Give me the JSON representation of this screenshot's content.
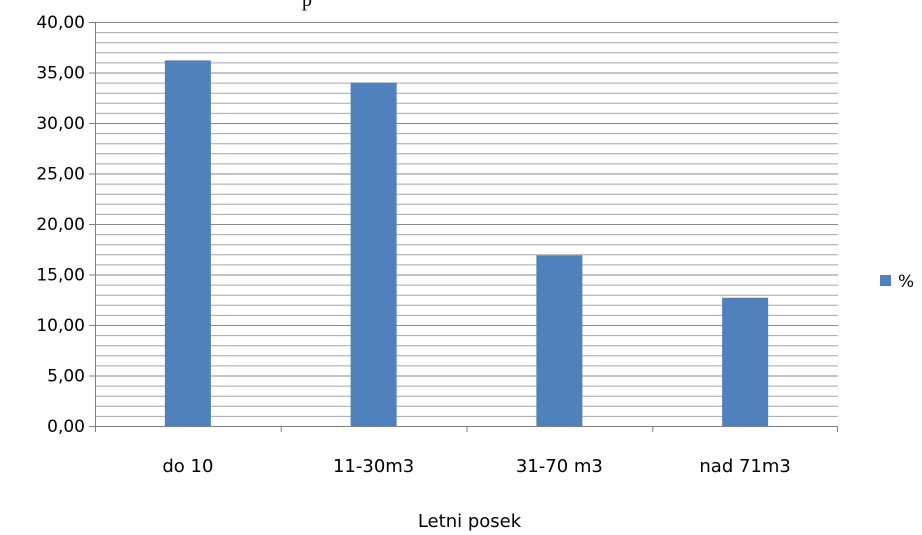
{
  "chart_data": {
    "type": "bar",
    "title": "",
    "xlabel": "Letni posek",
    "ylabel": "",
    "categories": [
      "do 10",
      "11-30m3",
      "31-70 m3",
      "nad 71m3"
    ],
    "series": [
      {
        "name": "%",
        "values": [
          36.2,
          34.0,
          16.9,
          12.7
        ],
        "color": "#4F81BD"
      }
    ],
    "ylim": [
      0,
      40
    ],
    "yticks": [
      0,
      5,
      10,
      15,
      20,
      25,
      30,
      35,
      40
    ],
    "ytick_labels": [
      "0,00",
      "5,00",
      "10,00",
      "15,00",
      "20,00",
      "25,00",
      "30,00",
      "35,00",
      "40,00"
    ],
    "minor_gridlines": true,
    "grid": true,
    "legend_position": "right",
    "partial_title_text": "p"
  }
}
